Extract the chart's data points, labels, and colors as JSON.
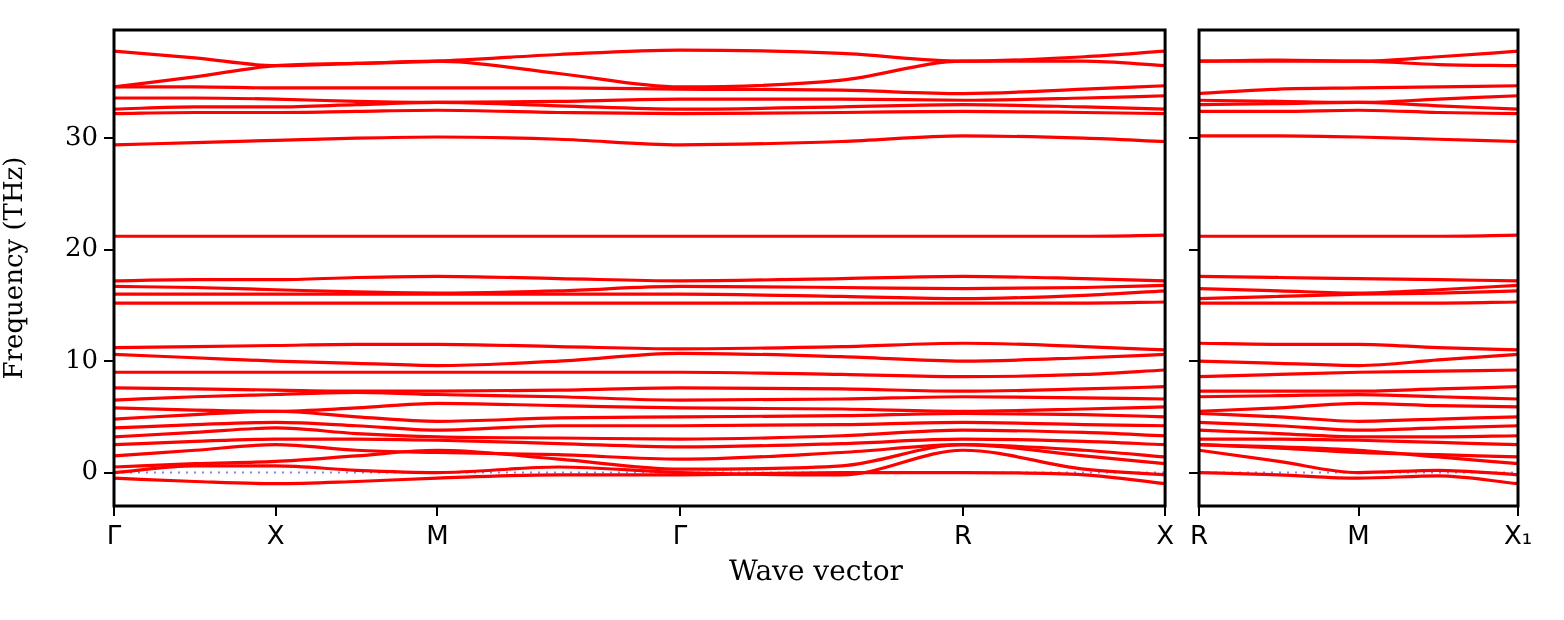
{
  "chart_data": [
    {
      "type": "line",
      "xlabel": "Wave vector",
      "ylabel": "Frequency (THz)",
      "categories": [
        "Γ",
        null,
        null,
        null,
        "X",
        null,
        null,
        null,
        "M",
        null,
        null,
        null,
        null,
        null,
        "Γ",
        null,
        null,
        null,
        null,
        null,
        null,
        "R",
        null,
        null,
        null,
        null,
        "X"
      ],
      "ylim": [
        -3,
        39.7
      ],
      "yticks": [
        0,
        10,
        20,
        30
      ],
      "grid": false,
      "legend": false,
      "ref_lines": [
        {
          "axis": "y",
          "value": 0,
          "color": "#8080ff",
          "line_style": "dotted"
        }
      ],
      "series": [
        {
          "color": "#ff0000",
          "values": [
            37.8,
            null,
            37.2,
            null,
            36.5,
            null,
            36.7,
            null,
            36.9,
            null,
            null,
            37.5,
            null,
            null,
            37.9,
            null,
            null,
            null,
            37.6,
            null,
            null,
            36.9,
            null,
            null,
            37.3,
            null,
            37.8
          ]
        },
        {
          "color": "#ff0000",
          "values": [
            34.6,
            null,
            35.5,
            null,
            36.5,
            null,
            36.7,
            null,
            36.9,
            null,
            null,
            35.8,
            null,
            null,
            34.6,
            null,
            null,
            null,
            35.2,
            null,
            null,
            36.9,
            null,
            null,
            36.9,
            null,
            36.5
          ]
        },
        {
          "color": "#ff0000",
          "values": [
            34.6,
            null,
            34.6,
            null,
            34.5,
            null,
            34.5,
            null,
            34.5,
            null,
            null,
            34.5,
            null,
            null,
            34.4,
            null,
            null,
            null,
            34.3,
            null,
            null,
            34,
            null,
            null,
            34.4,
            null,
            34.7
          ]
        },
        {
          "color": "#ff0000",
          "values": [
            33.6,
            null,
            33.6,
            null,
            33.5,
            null,
            33.3,
            null,
            33.2,
            null,
            null,
            33.3,
            null,
            null,
            33.5,
            null,
            null,
            null,
            33.5,
            null,
            null,
            33.4,
            null,
            null,
            33.6,
            null,
            33.8
          ]
        },
        {
          "color": "#ff0000",
          "values": [
            32.6,
            null,
            32.8,
            null,
            32.8,
            null,
            33,
            null,
            33.2,
            null,
            null,
            32.9,
            null,
            null,
            32.6,
            null,
            null,
            null,
            32.8,
            null,
            null,
            33,
            null,
            null,
            32.8,
            null,
            32.6
          ]
        },
        {
          "color": "#ff0000",
          "values": [
            32.2,
            null,
            32.3,
            null,
            32.3,
            null,
            32.4,
            null,
            32.5,
            null,
            null,
            32.3,
            null,
            null,
            32.2,
            null,
            null,
            null,
            32.3,
            null,
            null,
            32.4,
            null,
            null,
            32.3,
            null,
            32.2
          ]
        },
        {
          "color": "#ff0000",
          "values": [
            29.4,
            null,
            29.6,
            null,
            29.8,
            null,
            30,
            null,
            30.1,
            null,
            null,
            29.9,
            null,
            null,
            29.4,
            null,
            null,
            null,
            29.7,
            null,
            null,
            30.2,
            null,
            null,
            30,
            null,
            29.7
          ]
        },
        {
          "color": "#ff0000",
          "values": [
            21.2,
            null,
            21.2,
            null,
            21.2,
            null,
            21.2,
            null,
            21.2,
            null,
            null,
            21.2,
            null,
            null,
            21.2,
            null,
            null,
            null,
            21.2,
            null,
            null,
            21.2,
            null,
            null,
            21.2,
            null,
            21.3
          ]
        },
        {
          "color": "#ff0000",
          "values": [
            17.2,
            null,
            17.3,
            null,
            17.3,
            null,
            17.5,
            null,
            17.6,
            null,
            null,
            17.4,
            null,
            null,
            17.2,
            null,
            null,
            null,
            17.4,
            null,
            null,
            17.6,
            null,
            null,
            17.4,
            null,
            17.2
          ]
        },
        {
          "color": "#ff0000",
          "values": [
            16.7,
            null,
            16.6,
            null,
            16.4,
            null,
            16.2,
            null,
            16.1,
            null,
            null,
            16.3,
            null,
            null,
            16.7,
            null,
            null,
            null,
            16.6,
            null,
            null,
            16.5,
            null,
            null,
            16.6,
            null,
            16.8
          ]
        },
        {
          "color": "#ff0000",
          "values": [
            16,
            null,
            16,
            null,
            16,
            null,
            16,
            null,
            16,
            null,
            null,
            16,
            null,
            null,
            16,
            null,
            null,
            null,
            15.8,
            null,
            null,
            15.6,
            null,
            null,
            15.9,
            null,
            16.3
          ]
        },
        {
          "color": "#ff0000",
          "values": [
            15.2,
            null,
            15.2,
            null,
            15.2,
            null,
            15.2,
            null,
            15.2,
            null,
            null,
            15.2,
            null,
            null,
            15.2,
            null,
            null,
            null,
            15.2,
            null,
            null,
            15.2,
            null,
            null,
            15.2,
            null,
            15.3
          ]
        },
        {
          "color": "#ff0000",
          "values": [
            11.2,
            null,
            11.3,
            null,
            11.4,
            null,
            11.5,
            null,
            11.5,
            null,
            null,
            11.3,
            null,
            null,
            11.1,
            null,
            null,
            null,
            11.3,
            null,
            null,
            11.6,
            null,
            null,
            11.3,
            null,
            11
          ]
        },
        {
          "color": "#ff0000",
          "values": [
            10.6,
            null,
            10.3,
            null,
            10,
            null,
            9.8,
            null,
            9.6,
            null,
            null,
            10,
            null,
            null,
            10.7,
            null,
            null,
            null,
            10.4,
            null,
            null,
            10,
            null,
            null,
            10.3,
            null,
            10.6
          ]
        },
        {
          "color": "#ff0000",
          "values": [
            9,
            null,
            9,
            null,
            9,
            null,
            9,
            null,
            9,
            null,
            null,
            9,
            null,
            null,
            9,
            null,
            null,
            null,
            8.8,
            null,
            null,
            8.6,
            null,
            null,
            8.8,
            null,
            9.2
          ]
        },
        {
          "color": "#ff0000",
          "values": [
            7.6,
            null,
            7.5,
            null,
            7.4,
            null,
            7.3,
            null,
            7.3,
            null,
            null,
            7.4,
            null,
            null,
            7.6,
            null,
            null,
            null,
            7.5,
            null,
            null,
            7.3,
            null,
            null,
            7.5,
            null,
            7.7
          ]
        },
        {
          "color": "#ff0000",
          "values": [
            6.5,
            null,
            6.8,
            null,
            7,
            null,
            7.2,
            null,
            7,
            null,
            null,
            6.8,
            null,
            null,
            6.5,
            null,
            null,
            null,
            6.6,
            null,
            null,
            6.8,
            null,
            null,
            6.7,
            null,
            6.6
          ]
        },
        {
          "color": "#ff0000",
          "values": [
            5.8,
            null,
            5.6,
            null,
            5.5,
            null,
            5.8,
            null,
            6.2,
            null,
            null,
            6,
            null,
            null,
            5.8,
            null,
            null,
            null,
            5.7,
            null,
            null,
            5.5,
            null,
            null,
            5.7,
            null,
            5.9
          ]
        },
        {
          "color": "#ff0000",
          "values": [
            4.8,
            null,
            5.2,
            null,
            5.5,
            null,
            5,
            null,
            4.6,
            null,
            null,
            4.9,
            null,
            null,
            5,
            null,
            null,
            null,
            5.1,
            null,
            null,
            5.3,
            null,
            null,
            5.2,
            null,
            5
          ]
        },
        {
          "color": "#ff0000",
          "values": [
            4,
            null,
            4.3,
            null,
            4.5,
            null,
            4.2,
            null,
            3.8,
            null,
            null,
            4.2,
            null,
            null,
            4.2,
            null,
            null,
            null,
            4.3,
            null,
            null,
            4.5,
            null,
            null,
            4.3,
            null,
            4.2
          ]
        },
        {
          "color": "#ff0000",
          "values": [
            3.2,
            null,
            3.6,
            null,
            4,
            null,
            3.5,
            null,
            3.2,
            null,
            null,
            3.1,
            null,
            null,
            3,
            null,
            null,
            null,
            3.3,
            null,
            null,
            3.8,
            null,
            null,
            3.6,
            null,
            3.3
          ]
        },
        {
          "color": "#ff0000",
          "values": [
            2.5,
            null,
            2.8,
            null,
            3,
            null,
            3,
            null,
            2.9,
            null,
            null,
            2.6,
            null,
            null,
            2.3,
            null,
            null,
            null,
            2.6,
            null,
            null,
            3,
            null,
            null,
            2.8,
            null,
            2.5
          ]
        },
        {
          "color": "#ff0000",
          "values": [
            1.5,
            null,
            2,
            null,
            2.5,
            null,
            2,
            null,
            1.8,
            null,
            null,
            1.6,
            null,
            null,
            1.2,
            null,
            null,
            null,
            1.8,
            null,
            null,
            2.5,
            null,
            null,
            2,
            null,
            1.4
          ]
        },
        {
          "color": "#ff0000",
          "values": [
            0.5,
            null,
            0.8,
            null,
            1,
            null,
            1.5,
            null,
            2,
            null,
            null,
            1.2,
            null,
            null,
            0.3,
            null,
            null,
            null,
            0.6,
            null,
            null,
            2.5,
            null,
            null,
            1.5,
            null,
            0.8
          ]
        },
        {
          "color": "#ff0000",
          "values": [
            0,
            null,
            0.6,
            null,
            0.6,
            null,
            0.2,
            null,
            0,
            null,
            null,
            0.5,
            null,
            null,
            0,
            null,
            null,
            null,
            -0.2,
            null,
            null,
            2,
            null,
            null,
            0.3,
            null,
            -0.2
          ]
        },
        {
          "color": "#ff0000",
          "values": [
            -0.5,
            null,
            -0.8,
            null,
            -1,
            null,
            -0.8,
            null,
            -0.5,
            null,
            null,
            -0.2,
            null,
            null,
            -0.2,
            null,
            null,
            null,
            0,
            null,
            null,
            0,
            null,
            null,
            -0.2,
            null,
            -1
          ]
        }
      ]
    },
    {
      "type": "line",
      "categories": [
        "R",
        null,
        null,
        null,
        "M",
        null,
        null,
        null,
        "X₁"
      ],
      "ylim": [
        -3,
        39.7
      ],
      "yticks": [
        0,
        10,
        20,
        30
      ],
      "tick_labels": "x",
      "grid": false,
      "legend": false,
      "ref_lines": [
        {
          "axis": "y",
          "value": 0,
          "color": "#8080ff",
          "line_style": "dotted"
        }
      ],
      "series": [
        {
          "color": "#ff0000",
          "values": [
            36.9,
            null,
            37,
            null,
            36.9,
            null,
            37.3,
            null,
            37.8
          ]
        },
        {
          "color": "#ff0000",
          "values": [
            36.9,
            null,
            36.9,
            null,
            36.9,
            null,
            36.6,
            null,
            36.5
          ]
        },
        {
          "color": "#ff0000",
          "values": [
            34,
            null,
            34.4,
            null,
            34.5,
            null,
            34.6,
            null,
            34.7
          ]
        },
        {
          "color": "#ff0000",
          "values": [
            33.4,
            null,
            33.3,
            null,
            33.2,
            null,
            33.5,
            null,
            33.8
          ]
        },
        {
          "color": "#ff0000",
          "values": [
            33,
            null,
            33.1,
            null,
            33.2,
            null,
            32.9,
            null,
            32.6
          ]
        },
        {
          "color": "#ff0000",
          "values": [
            32.4,
            null,
            32.4,
            null,
            32.5,
            null,
            32.3,
            null,
            32.2
          ]
        },
        {
          "color": "#ff0000",
          "values": [
            30.2,
            null,
            30.2,
            null,
            30.1,
            null,
            29.9,
            null,
            29.7
          ]
        },
        {
          "color": "#ff0000",
          "values": [
            21.2,
            null,
            21.2,
            null,
            21.2,
            null,
            21.2,
            null,
            21.3
          ]
        },
        {
          "color": "#ff0000",
          "values": [
            17.6,
            null,
            17.5,
            null,
            17.4,
            null,
            17.3,
            null,
            17.2
          ]
        },
        {
          "color": "#ff0000",
          "values": [
            16.5,
            null,
            16.3,
            null,
            16.1,
            null,
            16.4,
            null,
            16.8
          ]
        },
        {
          "color": "#ff0000",
          "values": [
            15.6,
            null,
            15.8,
            null,
            16,
            null,
            16.1,
            null,
            16.3
          ]
        },
        {
          "color": "#ff0000",
          "values": [
            15.2,
            null,
            15.2,
            null,
            15.2,
            null,
            15.2,
            null,
            15.3
          ]
        },
        {
          "color": "#ff0000",
          "values": [
            11.6,
            null,
            11.5,
            null,
            11.5,
            null,
            11.2,
            null,
            11
          ]
        },
        {
          "color": "#ff0000",
          "values": [
            10,
            null,
            9.8,
            null,
            9.6,
            null,
            10.1,
            null,
            10.6
          ]
        },
        {
          "color": "#ff0000",
          "values": [
            8.6,
            null,
            8.8,
            null,
            9,
            null,
            9.1,
            null,
            9.2
          ]
        },
        {
          "color": "#ff0000",
          "values": [
            7.3,
            null,
            7.3,
            null,
            7.3,
            null,
            7.5,
            null,
            7.7
          ]
        },
        {
          "color": "#ff0000",
          "values": [
            6.8,
            null,
            6.9,
            null,
            7,
            null,
            6.8,
            null,
            6.6
          ]
        },
        {
          "color": "#ff0000",
          "values": [
            5.5,
            null,
            5.8,
            null,
            6.2,
            null,
            6,
            null,
            5.9
          ]
        },
        {
          "color": "#ff0000",
          "values": [
            5.3,
            null,
            5,
            null,
            4.6,
            null,
            4.8,
            null,
            5
          ]
        },
        {
          "color": "#ff0000",
          "values": [
            4.5,
            null,
            4.2,
            null,
            3.8,
            null,
            4,
            null,
            4.2
          ]
        },
        {
          "color": "#ff0000",
          "values": [
            3.8,
            null,
            3.5,
            null,
            3.2,
            null,
            3.2,
            null,
            3.3
          ]
        },
        {
          "color": "#ff0000",
          "values": [
            3,
            null,
            3,
            null,
            2.9,
            null,
            2.7,
            null,
            2.5
          ]
        },
        {
          "color": "#ff0000",
          "values": [
            2.5,
            null,
            2.2,
            null,
            1.8,
            null,
            1.6,
            null,
            1.4
          ]
        },
        {
          "color": "#ff0000",
          "values": [
            2.5,
            null,
            2.3,
            null,
            2,
            null,
            1.4,
            null,
            0.8
          ]
        },
        {
          "color": "#ff0000",
          "values": [
            2,
            null,
            1,
            null,
            0,
            null,
            0.2,
            null,
            -0.2
          ]
        },
        {
          "color": "#ff0000",
          "values": [
            0,
            null,
            -0.2,
            null,
            -0.5,
            null,
            -0.3,
            null,
            -1
          ]
        }
      ]
    }
  ]
}
